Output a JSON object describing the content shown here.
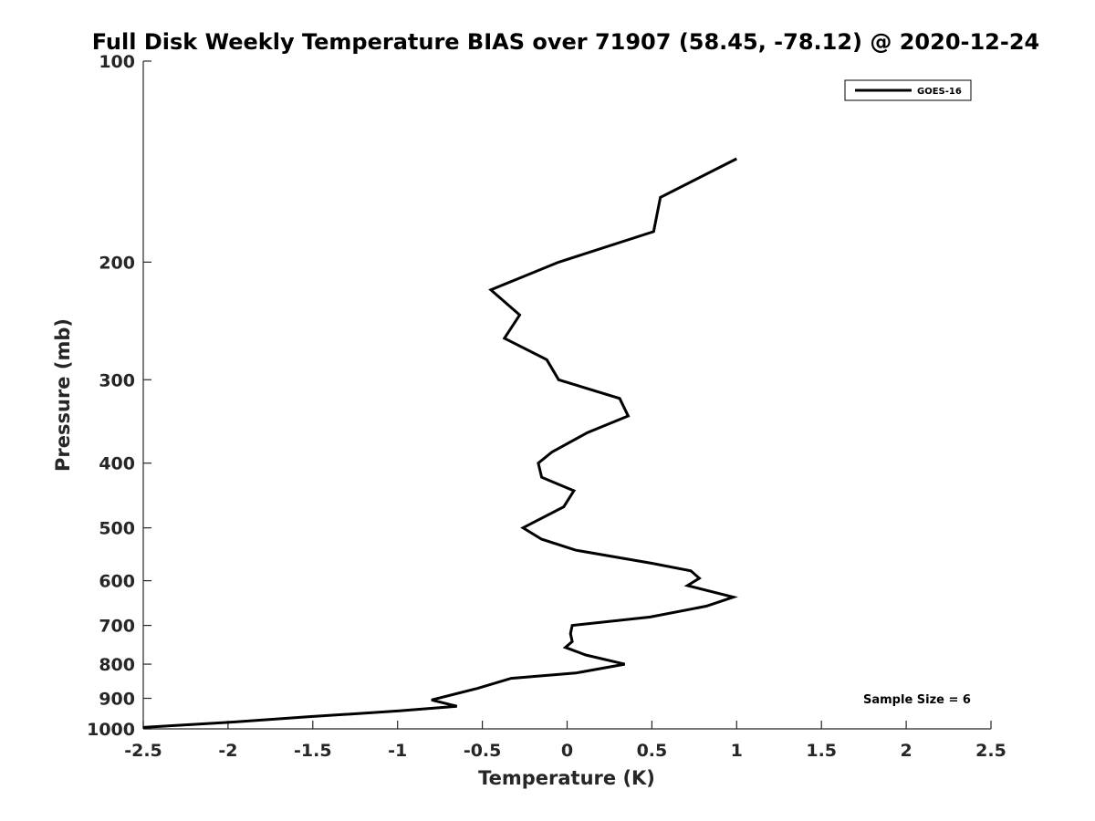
{
  "chart_data": {
    "type": "line",
    "title": "Full Disk Weekly Temperature BIAS over 71907 (58.45, -78.12) @ 2020-12-24",
    "xlabel": "Temperature (K)",
    "ylabel": "Pressure (mb)",
    "xlim": [
      -2.5,
      2.5
    ],
    "ylim": [
      1000,
      100
    ],
    "yscale": "log",
    "y_reversed": true,
    "x_ticks": [
      -2.5,
      -2,
      -1.5,
      -1,
      -0.5,
      0,
      0.5,
      1,
      1.5,
      2,
      2.5
    ],
    "x_tick_labels": [
      "-2.5",
      "-2",
      "-1.5",
      "-1",
      "-0.5",
      "0",
      "0.5",
      "1",
      "1.5",
      "2",
      "2.5"
    ],
    "y_ticks": [
      100,
      200,
      300,
      400,
      500,
      600,
      700,
      800,
      900,
      1000
    ],
    "y_tick_labels": [
      "100",
      "200",
      "300",
      "400",
      "500",
      "600",
      "700",
      "800",
      "900",
      "1000"
    ],
    "grid": false,
    "legend_position": "top-right",
    "series": [
      {
        "name": "GOES-16",
        "color": "#000000",
        "points": [
          {
            "x": 1.0,
            "p": 140
          },
          {
            "x": 0.55,
            "p": 160
          },
          {
            "x": 0.51,
            "p": 180
          },
          {
            "x": -0.05,
            "p": 200
          },
          {
            "x": -0.45,
            "p": 220
          },
          {
            "x": -0.28,
            "p": 240
          },
          {
            "x": -0.37,
            "p": 260
          },
          {
            "x": -0.12,
            "p": 280
          },
          {
            "x": -0.05,
            "p": 300
          },
          {
            "x": 0.31,
            "p": 320
          },
          {
            "x": 0.36,
            "p": 340
          },
          {
            "x": 0.12,
            "p": 360
          },
          {
            "x": -0.09,
            "p": 385
          },
          {
            "x": -0.17,
            "p": 400
          },
          {
            "x": -0.15,
            "p": 420
          },
          {
            "x": 0.04,
            "p": 440
          },
          {
            "x": -0.02,
            "p": 465
          },
          {
            "x": -0.26,
            "p": 500
          },
          {
            "x": -0.15,
            "p": 520
          },
          {
            "x": 0.05,
            "p": 540
          },
          {
            "x": 0.5,
            "p": 565
          },
          {
            "x": 0.73,
            "p": 580
          },
          {
            "x": 0.78,
            "p": 595
          },
          {
            "x": 0.71,
            "p": 610
          },
          {
            "x": 0.98,
            "p": 635
          },
          {
            "x": 0.82,
            "p": 655
          },
          {
            "x": 0.49,
            "p": 680
          },
          {
            "x": 0.03,
            "p": 700
          },
          {
            "x": 0.02,
            "p": 720
          },
          {
            "x": 0.03,
            "p": 740
          },
          {
            "x": -0.01,
            "p": 755
          },
          {
            "x": 0.11,
            "p": 775
          },
          {
            "x": 0.34,
            "p": 800
          },
          {
            "x": 0.05,
            "p": 825
          },
          {
            "x": -0.33,
            "p": 840
          },
          {
            "x": -0.53,
            "p": 870
          },
          {
            "x": -0.8,
            "p": 905
          },
          {
            "x": -0.65,
            "p": 925
          },
          {
            "x": -0.99,
            "p": 940
          },
          {
            "x": -1.5,
            "p": 958
          },
          {
            "x": -2.0,
            "p": 978
          },
          {
            "x": -2.5,
            "p": 995
          }
        ]
      }
    ],
    "annotations": [
      "Sample Size = 6"
    ]
  }
}
